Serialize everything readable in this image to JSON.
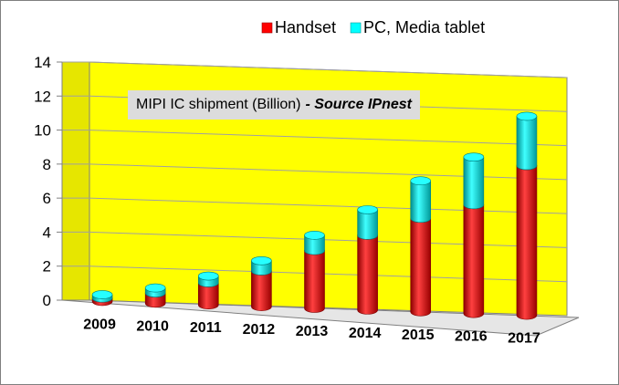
{
  "chart_data": {
    "type": "bar",
    "stacked": true,
    "three_d": true,
    "title": "MIPI IC shipment (Billion)",
    "title_source": "- Source IPnest",
    "categories": [
      "2009",
      "2010",
      "2011",
      "2012",
      "2013",
      "2014",
      "2015",
      "2016",
      "2017"
    ],
    "series": [
      {
        "name": "Handset",
        "color": "#ff0000",
        "values": [
          0.2,
          0.6,
          1.3,
          2.1,
          3.4,
          4.4,
          5.5,
          6.4,
          8.8
        ]
      },
      {
        "name": "PC, Media tablet",
        "color": "#00ffff",
        "values": [
          0.2,
          0.3,
          0.4,
          0.6,
          0.9,
          1.5,
          2.2,
          2.8,
          2.9
        ]
      }
    ],
    "yticks": [
      "0",
      "2",
      "4",
      "6",
      "8",
      "10",
      "12",
      "14"
    ],
    "ylim": [
      0,
      14
    ],
    "legend_position": "top-right",
    "grid": true,
    "wall_color": "#ffff00"
  }
}
